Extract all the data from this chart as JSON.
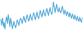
{
  "values": [
    55,
    45,
    58,
    42,
    50,
    38,
    52,
    60,
    48,
    65,
    55,
    42,
    58,
    48,
    38,
    44,
    52,
    46,
    40,
    48,
    55,
    50,
    44,
    52,
    58,
    54,
    48,
    56,
    62,
    55,
    50,
    58,
    64,
    57,
    52,
    60,
    66,
    58,
    54,
    62,
    68,
    60,
    55,
    63,
    70,
    62,
    57,
    65,
    72,
    64,
    60,
    68,
    74,
    66,
    62,
    70,
    76,
    68,
    63,
    71,
    78,
    70,
    65,
    73,
    88,
    78,
    68,
    76,
    84,
    74,
    70,
    78,
    72,
    68,
    76,
    80,
    70,
    65,
    73,
    68,
    63,
    70,
    65,
    60,
    68,
    63,
    58,
    66,
    61,
    56,
    64,
    59,
    54,
    62,
    57,
    52,
    60,
    55,
    50,
    58
  ],
  "line_color": "#4da6d8",
  "background_color": "#ffffff",
  "linewidth": 0.9
}
